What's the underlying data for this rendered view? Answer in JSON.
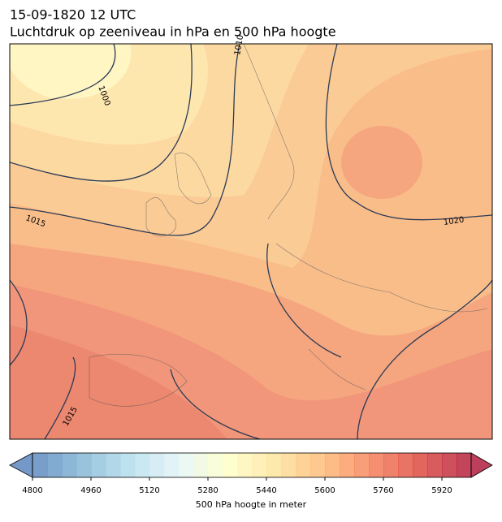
{
  "header": {
    "title": "15-09-1820 12 UTC",
    "subtitle": "Luchtdruk op zeeniveau in hPa en 500 hPa hoogte"
  },
  "map": {
    "contour_labels": [
      "1000",
      "1010",
      "1015",
      "1020",
      "1015"
    ]
  },
  "colorbar": {
    "label": "500 hPa hoogte in meter",
    "clim": [
      4800,
      6000
    ],
    "levels": 30,
    "ticks": [
      4800,
      4960,
      5120,
      5280,
      5440,
      5600,
      5760,
      5920
    ],
    "extend": "both"
  }
}
